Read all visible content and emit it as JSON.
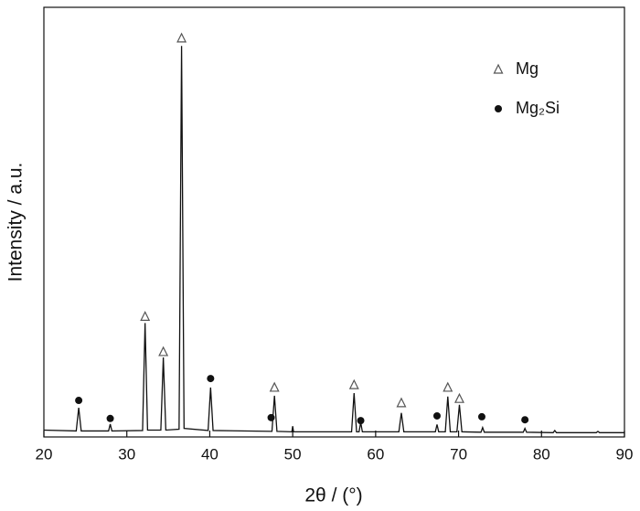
{
  "chart_data": {
    "type": "line",
    "x_label": "2θ / (°)",
    "y_label": "Intensity / a.u.",
    "color": "#111111",
    "xlim": [
      20,
      90
    ],
    "ylim": [
      0,
      100
    ],
    "xticks": [
      20,
      30,
      40,
      50,
      60,
      70,
      80,
      90
    ],
    "legend": "upper right",
    "x": [
      20,
      23.9,
      24.2,
      24.5,
      27.8,
      28.0,
      28.2,
      31.9,
      32.2,
      32.5,
      34.1,
      34.4,
      34.7,
      36.3,
      36.6,
      36.9,
      39.8,
      40.1,
      40.4,
      47.5,
      47.8,
      48.1,
      49.9,
      50.0,
      50.1,
      57.1,
      57.4,
      57.7,
      58.0,
      58.2,
      58.4,
      62.8,
      63.1,
      63.4,
      67.2,
      67.4,
      67.6,
      68.4,
      68.7,
      69.0,
      69.8,
      70.1,
      70.4,
      72.7,
      72.9,
      73.1,
      77.8,
      78.0,
      78.2,
      81.4,
      81.6,
      81.8,
      86.6,
      86.8,
      87.0,
      90
    ],
    "values": [
      1.6,
      1.4,
      6.8,
      1.4,
      1.4,
      3.0,
      1.4,
      1.5,
      26.5,
      1.6,
      1.6,
      18.5,
      1.6,
      1.8,
      91,
      2.0,
      1.5,
      11.5,
      1.5,
      1.3,
      9.6,
      1.3,
      1.2,
      2.5,
      1.2,
      1.2,
      10.2,
      1.2,
      1.2,
      3.4,
      1.2,
      1.2,
      5.6,
      1.2,
      1.2,
      2.9,
      1.2,
      1.2,
      9.4,
      1.2,
      1.2,
      7.5,
      1.2,
      1.1,
      2.2,
      1.1,
      1.1,
      2.0,
      1.1,
      1.0,
      1.5,
      1.0,
      1.0,
      1.3,
      1.0,
      1.0
    ],
    "phases": [
      {
        "name": "Mg",
        "marker": "triangle",
        "color": "#555555",
        "x": [
          32.2,
          34.4,
          36.6,
          47.8,
          57.4,
          63.1,
          68.7,
          70.1
        ],
        "y": [
          28,
          19.8,
          92.8,
          11.5,
          12.1,
          7.9,
          11.5,
          8.9
        ]
      },
      {
        "name": "Mg₂Si",
        "marker": "dot",
        "color": "#111111",
        "x": [
          24.2,
          28.0,
          40.1,
          47.4,
          58.2,
          67.4,
          72.8,
          78.0
        ],
        "y": [
          8.5,
          4.3,
          13.6,
          4.5,
          3.8,
          4.9,
          4.7,
          4.0
        ]
      }
    ]
  }
}
